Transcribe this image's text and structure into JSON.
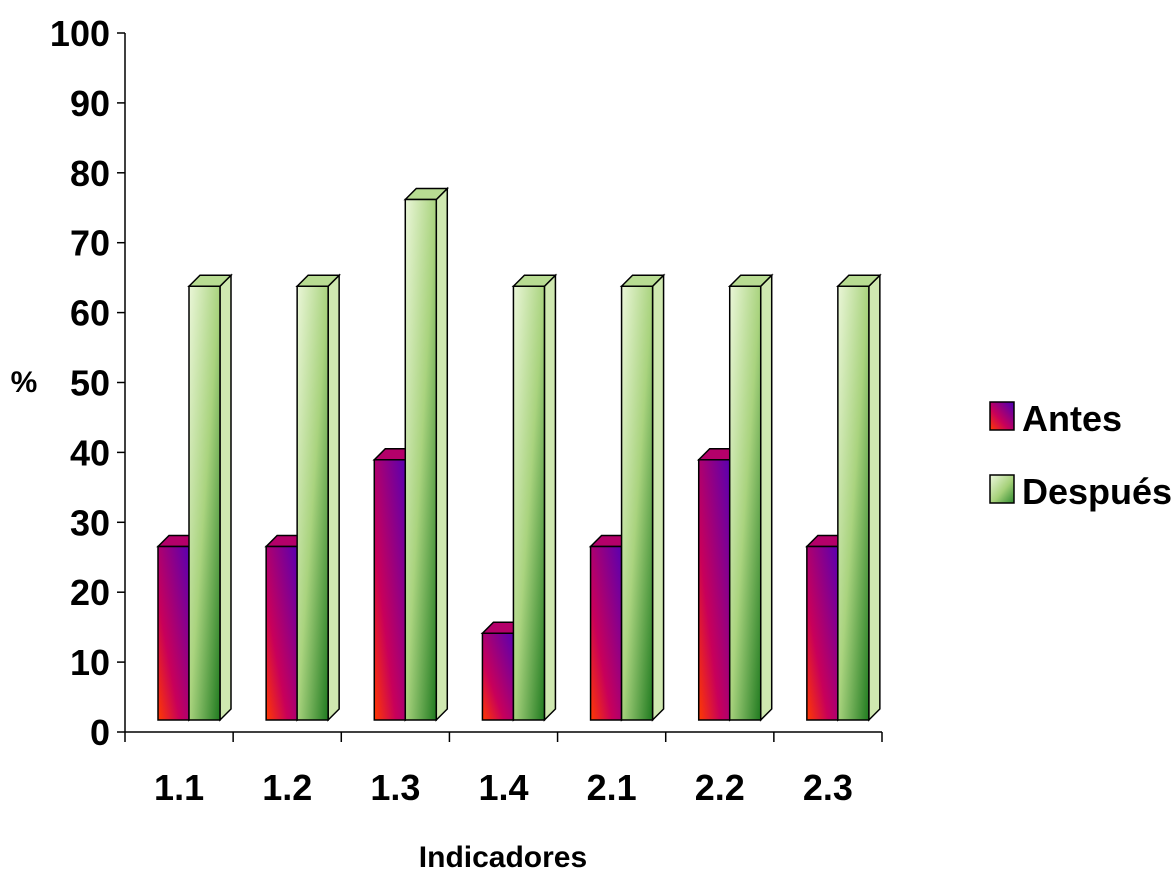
{
  "chart_data": {
    "type": "bar",
    "style": "3d-clustered-column",
    "categories": [
      "1.1",
      "1.2",
      "1.3",
      "1.4",
      "2.1",
      "2.2",
      "2.3"
    ],
    "series": [
      {
        "name": "Antes",
        "values": [
          25,
          25,
          37.5,
          12.5,
          25,
          37.5,
          25
        ],
        "color": "#9a0a6a"
      },
      {
        "name": "Después",
        "values": [
          62.5,
          62.5,
          75,
          62.5,
          62.5,
          62.5,
          62.5
        ],
        "color": "#8fbf5a"
      }
    ],
    "title": "",
    "xlabel": "Indicadores",
    "ylabel": "%",
    "ylim": [
      0,
      100
    ],
    "yticks": [
      "0",
      "10",
      "20",
      "30",
      "40",
      "50",
      "60",
      "70",
      "80",
      "90",
      "100"
    ],
    "grid": false,
    "legend": "right"
  }
}
